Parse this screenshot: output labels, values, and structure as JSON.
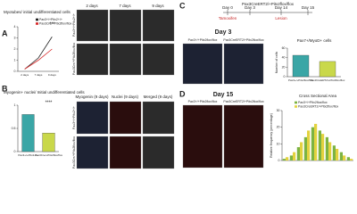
{
  "figure": {
    "letters": [
      "A",
      "B",
      "C",
      "D"
    ],
    "a_columns": [
      "2 days",
      "7 days",
      "9 days"
    ],
    "rows": [
      "Pax3+/+Pitx2+/+",
      "Pax3Cre/+Pitx2flox/flox"
    ],
    "b_columns": [
      "Myogenin (9 days)",
      "Nuclei (9 days)",
      "Merged (9 days)"
    ],
    "timeline": [
      "Day 0",
      "Day 3",
      "Day 14",
      "Day 15",
      "Tamoxifen",
      "Lesion"
    ],
    "c_header": "Pax3CreERT2/+Pitx2flox/flox",
    "c_title": "Day 3",
    "d_title": "Day 15",
    "image_labels": [
      "Pax3+/+Pitx2flox/flox",
      "Pax3CreERT2/+Pitx2flox/flox"
    ]
  },
  "chart_data": [
    {
      "type": "line",
      "title": "Myotubes/ initial undifferentiated cells",
      "categories": [
        "2 days",
        "7 days",
        "9 days"
      ],
      "series": [
        {
          "name": "Pax3+/+Pitx2+/+",
          "color": "#222222",
          "values": [
            0.2,
            1.2,
            3.1
          ]
        },
        {
          "name": "Pax3Cre/+Pitx2flox/flox",
          "color": "#d62728",
          "values": [
            0.2,
            1.0,
            2.0
          ]
        }
      ],
      "ylim": [
        0,
        4
      ],
      "yticks": [
        0,
        1,
        2,
        3,
        4
      ],
      "annotation": "***"
    },
    {
      "type": "bar",
      "title": "Myogenin+ nuclei/ Initial undifferentiated cells",
      "categories": [
        "Pax3+/+Pitx2+/+",
        "Pax3Cre/+Pitx2flox/flox"
      ],
      "values": [
        0.8,
        0.4
      ],
      "colors": [
        "#3aa6a6",
        "#c9d84a"
      ],
      "ylim": [
        0,
        1
      ],
      "yticks": [
        0,
        0.5,
        1
      ],
      "annotation": "****"
    },
    {
      "type": "bar",
      "title": "Pax7+/MyoD+ cells",
      "y_label": "Number of cells",
      "categories": [
        "Pax3+/+Pitx2flox/flox",
        "Pax3CreERT2/+Pitx2flox/flox"
      ],
      "values": [
        45,
        32
      ],
      "colors": [
        "#3aa6a6",
        "#c9d84a"
      ],
      "ylim": [
        0,
        60
      ],
      "yticks": [
        0,
        20,
        40,
        60
      ]
    },
    {
      "type": "grouped-bar",
      "title": "Cross Sectional Area",
      "y_label": "Relative frequency (percentage)",
      "categories": [
        null,
        null,
        null,
        null,
        null,
        null,
        null,
        null,
        null,
        null
      ],
      "series": [
        {
          "name": "Pax3+/+Pitx2flox/flox",
          "color": "#7cb342",
          "values": [
            1,
            3,
            8,
            14,
            20,
            18,
            14,
            9,
            5,
            2
          ]
        },
        {
          "name": "Pax3CreERT2/+Pitx2flox/flox",
          "color": "#e3d23e",
          "values": [
            2,
            5,
            11,
            18,
            22,
            16,
            11,
            7,
            3,
            1
          ]
        }
      ],
      "ylim": [
        0,
        30
      ],
      "yticks": [
        0,
        10,
        20,
        30
      ]
    }
  ]
}
